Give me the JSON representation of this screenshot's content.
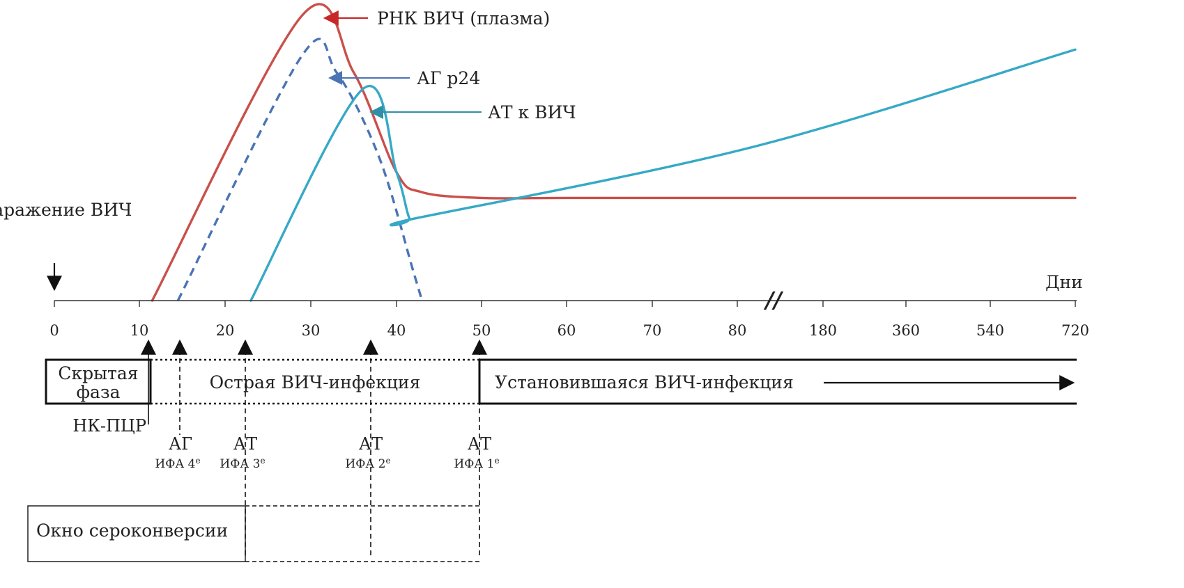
{
  "chart_data": {
    "type": "line",
    "title": "",
    "xlabel": "Дни",
    "ylabel": "",
    "grid": false,
    "x_ticks": [
      "0",
      "10",
      "20",
      "30",
      "40",
      "50",
      "60",
      "70",
      "80",
      "180",
      "360",
      "540",
      "720"
    ],
    "x_axis_break": "//",
    "x_axis_break_between": [
      "80",
      "180"
    ],
    "series": [
      {
        "name": "РНК ВИЧ (плазма)",
        "style": "solid",
        "color": "#c9504b",
        "points": [
          [
            11.5,
            0
          ],
          [
            29,
            100
          ],
          [
            35,
            80
          ],
          [
            40,
            45
          ],
          [
            43,
            38
          ],
          [
            50,
            36
          ],
          [
            60,
            36
          ],
          [
            80,
            36
          ],
          [
            720,
            36
          ]
        ]
      },
      {
        "name": "АГ р24",
        "style": "dashed",
        "color": "#4a74b4",
        "points": [
          [
            14.5,
            0
          ],
          [
            29,
            86
          ],
          [
            33,
            80
          ],
          [
            38,
            50
          ],
          [
            42,
            10
          ],
          [
            43,
            0
          ]
        ]
      },
      {
        "name": "АТ к ВИЧ",
        "style": "solid",
        "color": "#36a9c6",
        "points": [
          [
            23,
            0
          ],
          [
            36,
            74
          ],
          [
            40,
            45
          ],
          [
            41.5,
            29
          ],
          [
            42.5,
            29
          ],
          [
            100,
            54
          ],
          [
            720,
            88
          ]
        ]
      }
    ],
    "event_label": "Заражение ВИЧ",
    "event_at": "0"
  },
  "phases": [
    {
      "label": "Скрытая фаза",
      "from": 0,
      "to": 11
    },
    {
      "label": "Острая ВИЧ-инфекция",
      "from": 11,
      "to": 50
    },
    {
      "label": "Установившаяся ВИЧ-инфекция",
      "from": 50,
      "to": 720
    }
  ],
  "tests": [
    {
      "day": 11,
      "label": "НК-ПЦР",
      "sub": "",
      "line": "solid"
    },
    {
      "day": 14.5,
      "label": "АГ",
      "sub": "ИФА 4",
      "sup": "е",
      "line": "dashed"
    },
    {
      "day": 22,
      "label": "АТ",
      "sub": "ИФА 3",
      "sup": "е",
      "line": "dashed"
    },
    {
      "day": 37,
      "label": "АТ",
      "sub": "ИФА 2",
      "sup": "е",
      "line": "dashed"
    },
    {
      "day": 50,
      "label": "АТ",
      "sub": "ИФА 1",
      "sup": "е",
      "line": "dashed"
    }
  ],
  "window": {
    "label": "Окно сероконверсии"
  },
  "colors": {
    "rna": "#c9504b",
    "p24": "#4a74b4",
    "ab": "#36a9c6",
    "axis": "#333333"
  }
}
